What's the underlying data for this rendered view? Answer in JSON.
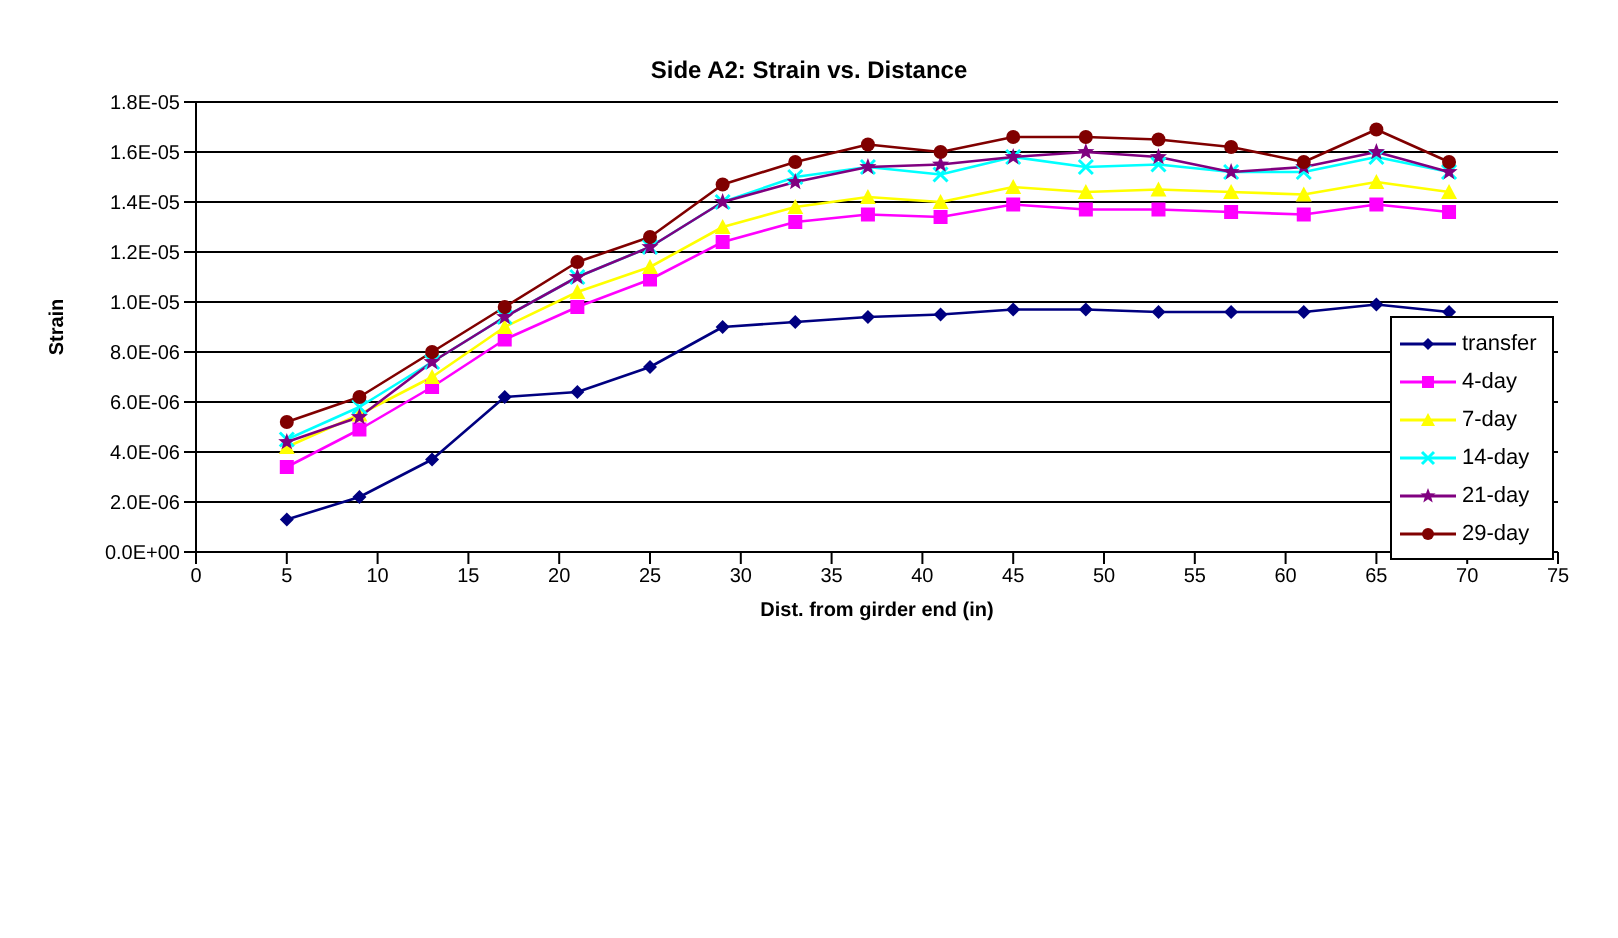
{
  "chart_data": {
    "type": "line",
    "title": "Side A2: Strain vs. Distance",
    "xlabel": "Dist. from girder end (in)",
    "ylabel": "Strain",
    "x": [
      5,
      9,
      13,
      17,
      21,
      25,
      29,
      33,
      37,
      41,
      45,
      49,
      53,
      57,
      61,
      65,
      69
    ],
    "series": [
      {
        "name": "transfer",
        "color": "#000080",
        "marker": "diamond",
        "values": [
          1.3e-06,
          2.2e-06,
          3.7e-06,
          6.2e-06,
          6.4e-06,
          7.4e-06,
          9e-06,
          9.2e-06,
          9.4e-06,
          9.5e-06,
          9.7e-06,
          9.7e-06,
          9.6e-06,
          9.6e-06,
          9.6e-06,
          9.9e-06,
          9.6e-06
        ]
      },
      {
        "name": "4-day",
        "color": "#ff00ff",
        "marker": "square",
        "values": [
          3.4e-06,
          4.9e-06,
          6.6e-06,
          8.5e-06,
          9.8e-06,
          1.09e-05,
          1.24e-05,
          1.32e-05,
          1.35e-05,
          1.34e-05,
          1.39e-05,
          1.37e-05,
          1.37e-05,
          1.36e-05,
          1.35e-05,
          1.39e-05,
          1.36e-05
        ]
      },
      {
        "name": "7-day",
        "color": "#ffff00",
        "marker": "triangle",
        "values": [
          4.2e-06,
          5.5e-06,
          7e-06,
          9e-06,
          1.04e-05,
          1.14e-05,
          1.3e-05,
          1.38e-05,
          1.42e-05,
          1.4e-05,
          1.46e-05,
          1.44e-05,
          1.45e-05,
          1.44e-05,
          1.43e-05,
          1.48e-05,
          1.44e-05
        ]
      },
      {
        "name": "14-day",
        "color": "#00ffff",
        "marker": "cross",
        "values": [
          4.5e-06,
          5.8e-06,
          7.6e-06,
          9.4e-06,
          1.1e-05,
          1.22e-05,
          1.4e-05,
          1.5e-05,
          1.54e-05,
          1.51e-05,
          1.58e-05,
          1.54e-05,
          1.55e-05,
          1.52e-05,
          1.52e-05,
          1.58e-05,
          1.52e-05
        ]
      },
      {
        "name": "21-day",
        "color": "#800080",
        "marker": "star",
        "values": [
          4.4e-06,
          5.4e-06,
          7.6e-06,
          9.4e-06,
          1.1e-05,
          1.22e-05,
          1.4e-05,
          1.48e-05,
          1.54e-05,
          1.55e-05,
          1.58e-05,
          1.6e-05,
          1.58e-05,
          1.52e-05,
          1.54e-05,
          1.6e-05,
          1.52e-05
        ]
      },
      {
        "name": "29-day",
        "color": "#800000",
        "marker": "circle",
        "values": [
          5.2e-06,
          6.2e-06,
          8e-06,
          9.8e-06,
          1.16e-05,
          1.26e-05,
          1.47e-05,
          1.56e-05,
          1.63e-05,
          1.6e-05,
          1.66e-05,
          1.66e-05,
          1.65e-05,
          1.62e-05,
          1.56e-05,
          1.69e-05,
          1.56e-05
        ]
      }
    ],
    "xlim": [
      0,
      75
    ],
    "xticks": [
      0,
      5,
      10,
      15,
      20,
      25,
      30,
      35,
      40,
      45,
      50,
      55,
      60,
      65,
      70,
      75
    ],
    "ylim": [
      0,
      1.8e-05
    ],
    "yticks": [
      {
        "value": 0,
        "label": "0.0E+00"
      },
      {
        "value": 2e-06,
        "label": "2.0E-06"
      },
      {
        "value": 4e-06,
        "label": "4.0E-06"
      },
      {
        "value": 6e-06,
        "label": "6.0E-06"
      },
      {
        "value": 8e-06,
        "label": "8.0E-06"
      },
      {
        "value": 1e-05,
        "label": "1.0E-05"
      },
      {
        "value": 1.2e-05,
        "label": "1.2E-05"
      },
      {
        "value": 1.4e-05,
        "label": "1.4E-05"
      },
      {
        "value": 1.6e-05,
        "label": "1.6E-05"
      },
      {
        "value": 1.8e-05,
        "label": "1.8E-05"
      }
    ],
    "grid": "y",
    "legend": "bottom right"
  }
}
